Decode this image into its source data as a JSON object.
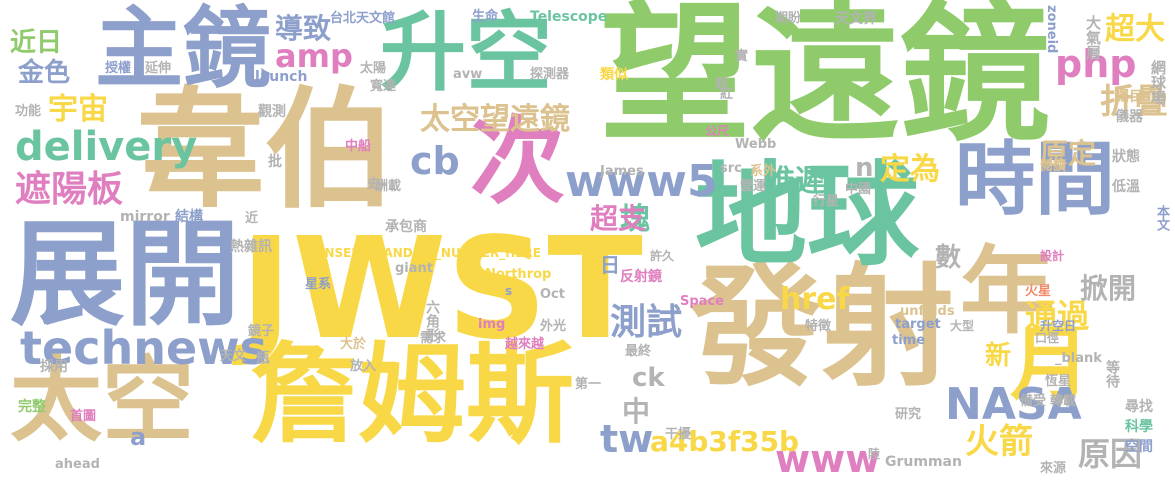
{
  "colors": {
    "background": "#ffffff",
    "green": "#8fcb6b",
    "tan": "#dcc28f",
    "yellow": "#f9d848",
    "blue": "#8d9fcb",
    "teal": "#6bc4a0",
    "pink": "#e07fbf",
    "gray": "#b3b3b3",
    "orange": "#f08a6a"
  },
  "words": [
    {
      "text": "望遠鏡",
      "color": "green"
    },
    {
      "text": "JWST",
      "color": "yellow"
    },
    {
      "text": "韋伯",
      "color": "tan"
    },
    {
      "text": "發射",
      "color": "tan"
    },
    {
      "text": "展開",
      "color": "blue"
    },
    {
      "text": "地球",
      "color": "teal"
    },
    {
      "text": "詹姆斯",
      "color": "yellow"
    },
    {
      "text": "主鏡",
      "color": "blue"
    },
    {
      "text": "太空",
      "color": "tan"
    },
    {
      "text": "升空",
      "color": "teal"
    },
    {
      "text": "次",
      "color": "pink"
    },
    {
      "text": "年",
      "color": "tan"
    },
    {
      "text": "時間",
      "color": "blue"
    },
    {
      "text": "月",
      "color": "yellow"
    },
    {
      "text": "www5",
      "color": "blue"
    },
    {
      "text": "technews",
      "color": "blue"
    },
    {
      "text": "delivery",
      "color": "teal"
    },
    {
      "text": "NASA",
      "color": "blue"
    },
    {
      "text": "遮陽板",
      "color": "pink"
    },
    {
      "text": "太空望遠鏡",
      "color": "tan"
    },
    {
      "text": "宇宙",
      "color": "yellow"
    },
    {
      "text": "www",
      "color": "pink"
    },
    {
      "text": "php",
      "color": "pink"
    },
    {
      "text": "amp",
      "color": "pink"
    },
    {
      "text": "cb",
      "color": "blue"
    },
    {
      "text": "tw",
      "color": "blue"
    },
    {
      "text": "測試",
      "color": "blue"
    },
    {
      "text": "火箭",
      "color": "yellow"
    },
    {
      "text": "通過",
      "color": "yellow"
    },
    {
      "text": "原因",
      "color": "gray"
    },
    {
      "text": "折疊",
      "color": "tan"
    },
    {
      "text": "超大",
      "color": "yellow"
    },
    {
      "text": "推遲",
      "color": "teal"
    },
    {
      "text": "定為",
      "color": "yellow"
    },
    {
      "text": "原定",
      "color": "tan"
    },
    {
      "text": "a4b3f35b",
      "color": "yellow"
    },
    {
      "text": "href",
      "color": "yellow"
    },
    {
      "text": "導致",
      "color": "blue"
    },
    {
      "text": "塊",
      "color": "teal"
    },
    {
      "text": "中",
      "color": "gray"
    },
    {
      "text": "ck",
      "color": "gray"
    },
    {
      "text": "近日",
      "color": "green"
    },
    {
      "text": "金色",
      "color": "blue"
    },
    {
      "text": "超支",
      "color": "pink"
    },
    {
      "text": "掀開",
      "color": "gray"
    },
    {
      "text": "數",
      "color": "gray"
    },
    {
      "text": "新",
      "color": "yellow"
    },
    {
      "text": "n",
      "color": "gray"
    },
    {
      "text": "a",
      "color": "blue"
    },
    {
      "text": "日",
      "color": "blue"
    },
    {
      "text": "Telescope",
      "color": "teal"
    },
    {
      "text": "台北天文館",
      "color": "blue"
    },
    {
      "text": "生命",
      "color": "blue"
    },
    {
      "text": "期盼",
      "color": "gray"
    },
    {
      "text": "天文界",
      "color": "gray"
    },
    {
      "text": "zoneid",
      "color": "blue"
    },
    {
      "text": "大氣層",
      "color": "gray"
    },
    {
      "text": "網球場",
      "color": "gray"
    },
    {
      "text": "囑目",
      "color": "tan"
    },
    {
      "text": "儀器",
      "color": "gray"
    },
    {
      "text": "公尺",
      "color": "pink"
    },
    {
      "text": "Webb",
      "color": "gray"
    },
    {
      "text": "James",
      "color": "gray"
    },
    {
      "text": "src",
      "color": "gray"
    },
    {
      "text": "系外",
      "color": "tan"
    },
    {
      "text": "營運",
      "color": "gray"
    },
    {
      "text": "中國",
      "color": "gray"
    },
    {
      "text": "行星",
      "color": "gray"
    },
    {
      "text": "狀態",
      "color": "gray"
    },
    {
      "text": "低溫",
      "color": "gray"
    },
    {
      "text": "本文",
      "color": "blue"
    },
    {
      "text": "閱讀",
      "color": "tan"
    },
    {
      "text": "設計",
      "color": "pink"
    },
    {
      "text": "火星",
      "color": "orange"
    },
    {
      "text": "升空日",
      "color": "blue"
    },
    {
      "text": "大型",
      "color": "gray"
    },
    {
      "text": "口徑",
      "color": "gray"
    },
    {
      "text": "_blank",
      "color": "gray"
    },
    {
      "text": "恆星",
      "color": "gray"
    },
    {
      "text": "備受",
      "color": "gray"
    },
    {
      "text": "轉載",
      "color": "gray"
    },
    {
      "text": "等待",
      "color": "gray"
    },
    {
      "text": "尋找",
      "color": "gray"
    },
    {
      "text": "科學",
      "color": "teal"
    },
    {
      "text": "空間",
      "color": "blue"
    },
    {
      "text": "來源",
      "color": "gray"
    },
    {
      "text": "研究",
      "color": "gray"
    },
    {
      "text": "Grumman",
      "color": "gray"
    },
    {
      "text": "陸",
      "color": "gray"
    },
    {
      "text": "unfolds",
      "color": "tan"
    },
    {
      "text": "target",
      "color": "blue"
    },
    {
      "text": "time",
      "color": "blue"
    },
    {
      "text": "特徵",
      "color": "gray"
    },
    {
      "text": "Space",
      "color": "pink"
    },
    {
      "text": "反射鏡",
      "color": "pink"
    },
    {
      "text": "許久",
      "color": "gray"
    },
    {
      "text": "Oct",
      "color": "gray"
    },
    {
      "text": "外光",
      "color": "gray"
    },
    {
      "text": "越來越",
      "color": "pink"
    },
    {
      "text": "最終",
      "color": "gray"
    },
    {
      "text": "第一",
      "color": "gray"
    },
    {
      "text": "干擾",
      "color": "gray"
    },
    {
      "text": "Northrop",
      "color": "yellow"
    },
    {
      "text": "s",
      "color": "blue"
    },
    {
      "text": "img",
      "color": "pink"
    },
    {
      "text": "需求",
      "color": "gray"
    },
    {
      "text": "大於",
      "color": "tan"
    },
    {
      "text": "放入",
      "color": "gray"
    },
    {
      "text": "六角形",
      "color": "gray"
    },
    {
      "text": "鏡子",
      "color": "gray"
    },
    {
      "text": "天文",
      "color": "gray"
    },
    {
      "text": "瓶",
      "color": "gray"
    },
    {
      "text": "採用",
      "color": "gray"
    },
    {
      "text": "完整",
      "color": "green"
    },
    {
      "text": "首圖",
      "color": "pink"
    },
    {
      "text": "ahead",
      "color": "gray"
    },
    {
      "text": "INSERT_RANDOM_NUMBER_HERE",
      "color": "yellow"
    },
    {
      "text": "星系",
      "color": "blue"
    },
    {
      "text": "giant",
      "color": "gray"
    },
    {
      "text": "熱雜訊",
      "color": "gray"
    },
    {
      "text": "結構",
      "color": "blue"
    },
    {
      "text": "mirror",
      "color": "gray"
    },
    {
      "text": "近",
      "color": "gray"
    },
    {
      "text": "承包商",
      "color": "gray"
    },
    {
      "text": "酬載",
      "color": "gray"
    },
    {
      "text": "中船",
      "color": "pink"
    },
    {
      "text": "史",
      "color": "gray"
    },
    {
      "text": "批",
      "color": "gray"
    },
    {
      "text": "觀測",
      "color": "gray"
    },
    {
      "text": "功能",
      "color": "gray"
    },
    {
      "text": "授權",
      "color": "blue"
    },
    {
      "text": "延伸",
      "color": "gray"
    },
    {
      "text": "太陽",
      "color": "gray"
    },
    {
      "text": "寬達",
      "color": "gray"
    },
    {
      "text": "launch",
      "color": "blue"
    },
    {
      "text": "avw",
      "color": "gray"
    },
    {
      "text": "探測器",
      "color": "gray"
    },
    {
      "text": "類似",
      "color": "yellow"
    },
    {
      "text": "超",
      "color": "gray"
    },
    {
      "text": "紅",
      "color": "gray"
    },
    {
      "text": "實",
      "color": "gray"
    }
  ]
}
